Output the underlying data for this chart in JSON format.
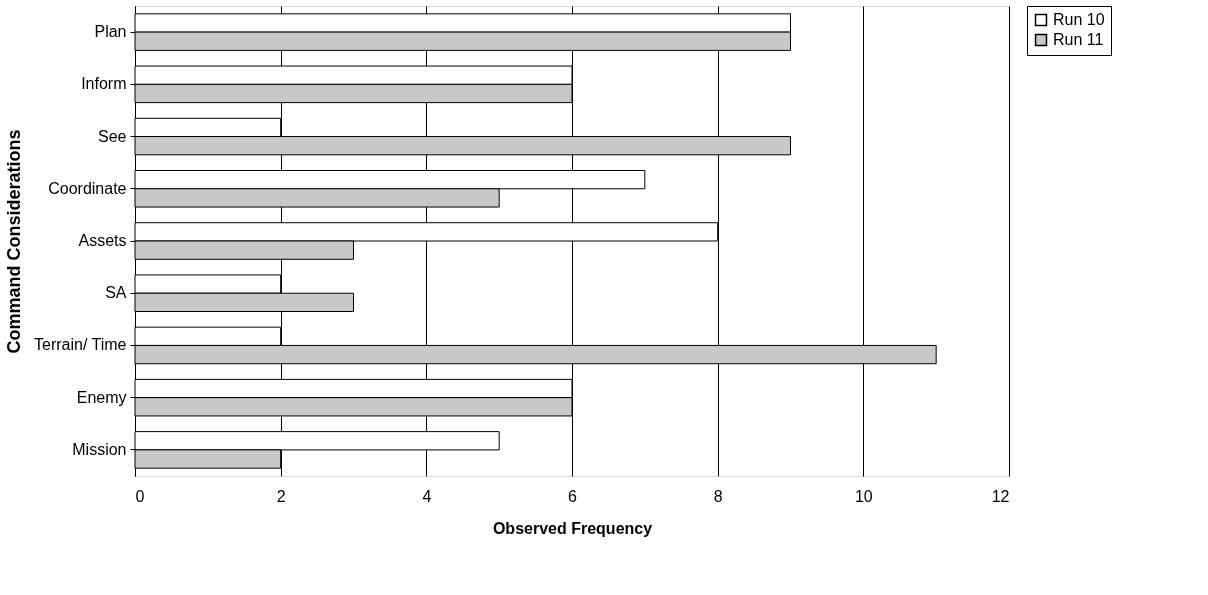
{
  "chart_data": {
    "type": "bar",
    "orientation": "horizontal",
    "xlabel": "Observed Frequency",
    "ylabel": "Command Considerations",
    "categories": [
      "Plan",
      "Inform",
      "See",
      "Coordinate",
      "Assets",
      "SA",
      "Terrain/ Time",
      "Enemy",
      "Mission"
    ],
    "series": [
      {
        "name": "Run 10",
        "color": "#ffffff",
        "values": [
          9,
          6,
          2,
          7,
          8,
          2,
          2,
          6,
          5
        ]
      },
      {
        "name": "Run 11",
        "color": "#c8c8c8",
        "values": [
          9,
          6,
          9,
          5,
          3,
          3,
          11,
          6,
          2
        ]
      }
    ],
    "xlim": [
      0,
      12
    ],
    "xticks": [
      0,
      2,
      4,
      6,
      8,
      10,
      12
    ],
    "grid": "x",
    "legend": "right"
  }
}
